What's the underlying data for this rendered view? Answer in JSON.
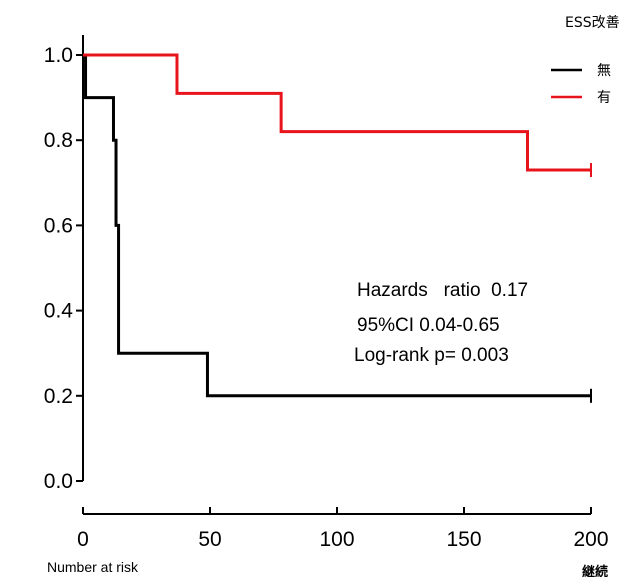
{
  "chart_data": {
    "type": "line",
    "title": "",
    "xlabel": "",
    "ylabel": "",
    "xlim": [
      0,
      200
    ],
    "ylim": [
      0,
      1.0
    ],
    "x_ticks": [
      "0",
      "50",
      "100",
      "150",
      "200"
    ],
    "y_ticks": [
      "0.0",
      "0.2",
      "0.4",
      "0.6",
      "0.8",
      "1.0"
    ],
    "grid": false,
    "legend": {
      "title": "ESS改善",
      "placement": "top-right",
      "entries": [
        "無",
        "有"
      ]
    },
    "series": [
      {
        "name": "無",
        "color": "#000000",
        "step": [
          [
            0,
            1.0
          ],
          [
            1,
            0.9
          ],
          [
            12,
            0.8
          ],
          [
            13,
            0.6
          ],
          [
            14,
            0.3
          ],
          [
            49,
            0.2
          ],
          [
            200,
            0.2
          ]
        ],
        "censor": [
          [
            200,
            0.2
          ]
        ]
      },
      {
        "name": "有",
        "color": "#e8141b",
        "step": [
          [
            0,
            1.0
          ],
          [
            37,
            0.91
          ],
          [
            78,
            0.82
          ],
          [
            175,
            0.73
          ],
          [
            200,
            0.73
          ]
        ],
        "censor": [
          [
            200,
            0.73
          ]
        ]
      }
    ],
    "annotations": [
      "Hazards   ratio  0.17",
      "95%CI 0.04-0.65",
      "Log-rank p= 0.003"
    ],
    "risk_table_label": "Number at risk",
    "cut_off_note": "継続"
  }
}
